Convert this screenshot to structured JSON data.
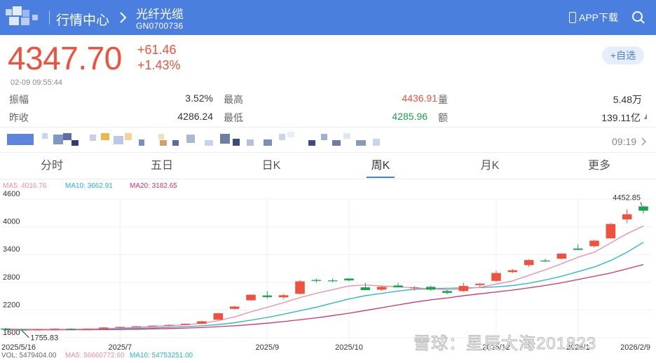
{
  "header": {
    "nav_title": "行情中心",
    "stock_name": "光纤光缆",
    "stock_code": "GN0700736",
    "app_download": "APP下载",
    "colors": {
      "bar": "#4a7fe0"
    }
  },
  "quote": {
    "price": "4347.70",
    "change": "+61.46",
    "change_pct": "+1.43%",
    "timestamp": "02-09   09:55:44",
    "add_watchlist": "+自选",
    "colors": {
      "up": "#f0503c",
      "down": "#1aa34a"
    }
  },
  "stats": [
    {
      "label": "振幅",
      "value": "3.52%",
      "tone": ""
    },
    {
      "label": "最高",
      "value": "4436.91",
      "tone": "red"
    },
    {
      "label": "量",
      "value": "5.48万",
      "tone": ""
    },
    {
      "label": "昨收",
      "value": "4286.24",
      "tone": ""
    },
    {
      "label": "最低",
      "value": "4285.96",
      "tone": "green"
    },
    {
      "label": "额",
      "value": "139.11亿",
      "tone": ""
    }
  ],
  "news": {
    "time": "09:19"
  },
  "tabs": [
    "分时",
    "五日",
    "日K",
    "周K",
    "月K",
    "更多"
  ],
  "active_tab": "周K",
  "ma_legend": [
    {
      "label": "MA5: 4016.76",
      "color": "#f08aa8"
    },
    {
      "label": "MA10: 3662.91",
      "color": "#22b4cc"
    },
    {
      "label": "MA20: 3182.65",
      "color": "#d8306a"
    }
  ],
  "vol_legend": [
    {
      "label": "VOL: 5479404.00",
      "color": "#666666"
    },
    {
      "label": "MA5: 56660772.60",
      "color": "#f08aa8"
    },
    {
      "label": "MA10: 54753251.00",
      "color": "#22b4cc"
    }
  ],
  "watermark": "雪球：星辰大海201823",
  "chart_data": {
    "type": "candlestick",
    "y_ticks": [
      "4600",
      "4000",
      "3400",
      "2800",
      "2200",
      "1600"
    ],
    "y_range": [
      1600,
      4600
    ],
    "x_ticks": [
      "2025/5/16",
      "2025/7",
      "2025/9",
      "2025/10",
      "2025/12",
      "2026/1",
      "2026/2/9"
    ],
    "max_label": "4452.85",
    "min_label": "1755.83",
    "grid": true,
    "candles": [
      {
        "o": 1800,
        "h": 1815,
        "l": 1765,
        "c": 1775
      },
      {
        "o": 1775,
        "h": 1790,
        "l": 1756,
        "c": 1770
      },
      {
        "o": 1770,
        "h": 1790,
        "l": 1762,
        "c": 1782
      },
      {
        "o": 1782,
        "h": 1800,
        "l": 1772,
        "c": 1795
      },
      {
        "o": 1795,
        "h": 1805,
        "l": 1772,
        "c": 1778
      },
      {
        "o": 1778,
        "h": 1800,
        "l": 1770,
        "c": 1790
      },
      {
        "o": 1790,
        "h": 1830,
        "l": 1785,
        "c": 1822
      },
      {
        "o": 1822,
        "h": 1840,
        "l": 1815,
        "c": 1835
      },
      {
        "o": 1835,
        "h": 1855,
        "l": 1828,
        "c": 1848
      },
      {
        "o": 1848,
        "h": 1870,
        "l": 1840,
        "c": 1862
      },
      {
        "o": 1862,
        "h": 1888,
        "l": 1855,
        "c": 1878
      },
      {
        "o": 1878,
        "h": 1910,
        "l": 1872,
        "c": 1902
      },
      {
        "o": 1902,
        "h": 1965,
        "l": 1895,
        "c": 1955
      },
      {
        "o": 1990,
        "h": 2135,
        "l": 1985,
        "c": 2130
      },
      {
        "o": 2225,
        "h": 2290,
        "l": 2215,
        "c": 2275
      },
      {
        "o": 2410,
        "h": 2535,
        "l": 2400,
        "c": 2530
      },
      {
        "o": 2515,
        "h": 2610,
        "l": 2445,
        "c": 2480
      },
      {
        "o": 2475,
        "h": 2545,
        "l": 2440,
        "c": 2520
      },
      {
        "o": 2550,
        "h": 2850,
        "l": 2540,
        "c": 2820
      },
      {
        "o": 2850,
        "h": 2880,
        "l": 2790,
        "c": 2830
      },
      {
        "o": 2840,
        "h": 2880,
        "l": 2800,
        "c": 2825
      },
      {
        "o": 2880,
        "h": 2890,
        "l": 2820,
        "c": 2840
      },
      {
        "o": 2690,
        "h": 2790,
        "l": 2640,
        "c": 2630
      },
      {
        "o": 2640,
        "h": 2720,
        "l": 2615,
        "c": 2700
      },
      {
        "o": 2730,
        "h": 2790,
        "l": 2690,
        "c": 2690
      },
      {
        "o": 2680,
        "h": 2720,
        "l": 2620,
        "c": 2690
      },
      {
        "o": 2700,
        "h": 2730,
        "l": 2620,
        "c": 2640
      },
      {
        "o": 2610,
        "h": 2640,
        "l": 2540,
        "c": 2570
      },
      {
        "o": 2610,
        "h": 2790,
        "l": 2590,
        "c": 2720
      },
      {
        "o": 2740,
        "h": 2780,
        "l": 2700,
        "c": 2770
      },
      {
        "o": 2830,
        "h": 3050,
        "l": 2810,
        "c": 3000
      },
      {
        "o": 3020,
        "h": 3090,
        "l": 3000,
        "c": 3060
      },
      {
        "o": 3170,
        "h": 3300,
        "l": 3130,
        "c": 3280
      },
      {
        "o": 3270,
        "h": 3310,
        "l": 3240,
        "c": 3250
      },
      {
        "o": 3310,
        "h": 3430,
        "l": 3300,
        "c": 3420
      },
      {
        "o": 3530,
        "h": 3620,
        "l": 3500,
        "c": 3500
      },
      {
        "o": 3580,
        "h": 3720,
        "l": 3550,
        "c": 3700
      },
      {
        "o": 3750,
        "h": 4080,
        "l": 3740,
        "c": 4060
      },
      {
        "o": 4160,
        "h": 4380,
        "l": 4080,
        "c": 4270
      },
      {
        "o": 4440,
        "h": 4453,
        "l": 4286,
        "c": 4348
      }
    ],
    "ma5": [
      1790,
      1788,
      1785,
      1783,
      1785,
      1790,
      1800,
      1812,
      1826,
      1845,
      1862,
      1882,
      1915,
      1970,
      2050,
      2160,
      2260,
      2360,
      2470,
      2560,
      2640,
      2720,
      2740,
      2720,
      2700,
      2680,
      2660,
      2640,
      2660,
      2690,
      2760,
      2830,
      2950,
      3070,
      3200,
      3340,
      3450,
      3650,
      3850,
      4017
    ],
    "ma10": [
      1780,
      1780,
      1780,
      1780,
      1782,
      1785,
      1790,
      1796,
      1805,
      1815,
      1828,
      1842,
      1860,
      1885,
      1925,
      1980,
      2040,
      2110,
      2185,
      2260,
      2350,
      2440,
      2510,
      2560,
      2610,
      2650,
      2660,
      2670,
      2680,
      2685,
      2700,
      2730,
      2780,
      2850,
      2930,
      3030,
      3130,
      3270,
      3450,
      3663
    ],
    "ma20": [
      1770,
      1770,
      1770,
      1771,
      1772,
      1774,
      1776,
      1780,
      1785,
      1792,
      1800,
      1810,
      1822,
      1840,
      1860,
      1885,
      1915,
      1950,
      1990,
      2030,
      2080,
      2130,
      2190,
      2250,
      2310,
      2370,
      2420,
      2460,
      2510,
      2550,
      2590,
      2630,
      2680,
      2730,
      2790,
      2860,
      2930,
      3000,
      3090,
      3183
    ]
  }
}
